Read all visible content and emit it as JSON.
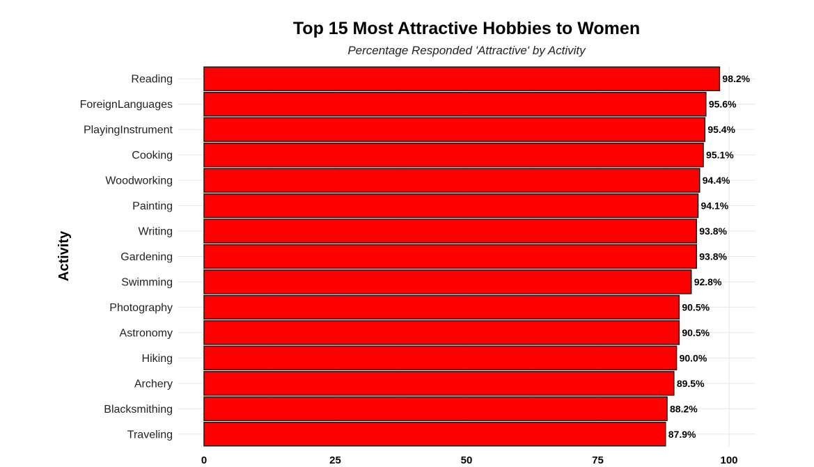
{
  "chart_data": {
    "type": "bar",
    "orientation": "horizontal",
    "title": "Top 15 Most Attractive Hobbies to Women",
    "subtitle": "Percentage Responded 'Attractive' by Activity",
    "xlabel": "",
    "ylabel": "Activity",
    "xlim": [
      0,
      100
    ],
    "x_ticks": [
      0,
      25,
      50,
      75,
      100
    ],
    "grid": true,
    "bar_color": "#ff0000",
    "categories": [
      "Reading",
      "ForeignLanguages",
      "PlayingInstrument",
      "Cooking",
      "Woodworking",
      "Painting",
      "Writing",
      "Gardening",
      "Swimming",
      "Photography",
      "Astronomy",
      "Hiking",
      "Archery",
      "Blacksmithing",
      "Traveling"
    ],
    "values": [
      98.2,
      95.6,
      95.4,
      95.1,
      94.4,
      94.1,
      93.8,
      93.8,
      92.8,
      90.5,
      90.5,
      90.0,
      89.5,
      88.2,
      87.9
    ],
    "data_labels": [
      "98.2%",
      "95.6%",
      "95.4%",
      "95.1%",
      "94.4%",
      "94.1%",
      "93.8%",
      "93.8%",
      "92.8%",
      "90.5%",
      "90.5%",
      "90.0%",
      "89.5%",
      "88.2%",
      "87.9%"
    ]
  }
}
